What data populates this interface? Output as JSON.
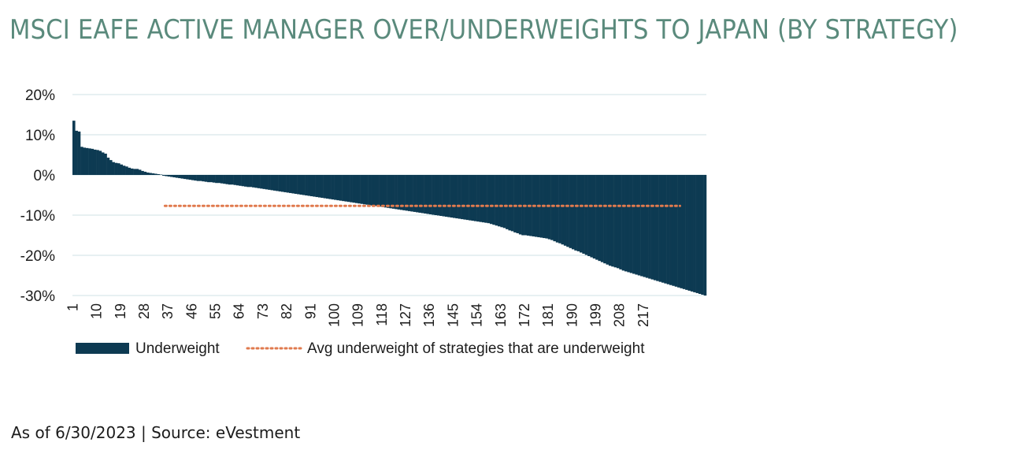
{
  "page": {
    "title": "MSCI EAFE ACTIVE MANAGER OVER/UNDERWEIGHTS TO JAPAN (BY STRATEGY)",
    "footer": "As of 6/30/2023 | Source: eVestment"
  },
  "colors": {
    "bars": "#0d3a52",
    "avg_line": "#e07a4e",
    "grid": "#cfe0e6",
    "title": "#5a8a7c"
  },
  "chart_data": {
    "type": "bar",
    "title": "MSCI EAFE ACTIVE MANAGER OVER/UNDERWEIGHTS TO JAPAN (BY STRATEGY)",
    "xlabel": "",
    "ylabel": "",
    "ylim": [
      -30,
      20
    ],
    "yticks": [
      20,
      10,
      0,
      -10,
      -20,
      -30
    ],
    "ytick_labels": [
      "20%",
      "10%",
      "0%",
      "-10%",
      "-20%",
      "-30%"
    ],
    "xtick_labels": [
      "1",
      "10",
      "19",
      "28",
      "37",
      "46",
      "55",
      "64",
      "73",
      "82",
      "91",
      "100",
      "109",
      "118",
      "127",
      "136",
      "145",
      "154",
      "163",
      "172",
      "181",
      "190",
      "199",
      "208",
      "217"
    ],
    "grid": true,
    "legend": {
      "placement": "bottom",
      "entries": [
        "Underweight",
        "Avg underweight of strategies that are underweight"
      ]
    },
    "series": [
      {
        "name": "Underweight",
        "values": [
          13.5,
          11,
          10.8,
          7,
          6.8,
          6.7,
          6.6,
          6.5,
          6.3,
          6.2,
          6.0,
          5.6,
          5.3,
          4.3,
          3.7,
          3.2,
          3.0,
          2.9,
          2.6,
          2.3,
          2.1,
          1.8,
          1.6,
          1.5,
          1.5,
          1.3,
          1.0,
          0.8,
          0.6,
          0.5,
          0.4,
          0.3,
          0.2,
          0.1,
          -0.2,
          -0.3,
          -0.4,
          -0.5,
          -0.6,
          -0.7,
          -0.8,
          -0.9,
          -1.0,
          -1.1,
          -1.2,
          -1.3,
          -1.4,
          -1.5,
          -1.5,
          -1.6,
          -1.7,
          -1.8,
          -1.8,
          -1.9,
          -2.0,
          -2.0,
          -2.1,
          -2.2,
          -2.3,
          -2.4,
          -2.4,
          -2.5,
          -2.6,
          -2.7,
          -2.8,
          -2.9,
          -3.0,
          -3.0,
          -3.1,
          -3.2,
          -3.3,
          -3.4,
          -3.5,
          -3.6,
          -3.7,
          -3.8,
          -3.9,
          -4.0,
          -4.1,
          -4.2,
          -4.3,
          -4.4,
          -4.5,
          -4.6,
          -4.7,
          -4.8,
          -4.9,
          -5.0,
          -5.1,
          -5.2,
          -5.3,
          -5.4,
          -5.5,
          -5.6,
          -5.7,
          -5.8,
          -5.9,
          -6.0,
          -6.1,
          -6.2,
          -6.3,
          -6.4,
          -6.5,
          -6.6,
          -6.7,
          -6.8,
          -6.9,
          -7.0,
          -7.1,
          -7.2,
          -7.3,
          -7.4,
          -7.5,
          -7.6,
          -7.7,
          -7.8,
          -7.9,
          -8.0,
          -8.1,
          -8.2,
          -8.3,
          -8.4,
          -8.5,
          -8.6,
          -8.7,
          -8.8,
          -8.9,
          -9.0,
          -9.1,
          -9.2,
          -9.3,
          -9.4,
          -9.5,
          -9.6,
          -9.7,
          -9.8,
          -9.9,
          -10.0,
          -10.1,
          -10.2,
          -10.3,
          -10.4,
          -10.5,
          -10.6,
          -10.7,
          -10.8,
          -10.9,
          -11.0,
          -11.1,
          -11.2,
          -11.3,
          -11.4,
          -11.5,
          -11.6,
          -11.7,
          -11.8,
          -11.9,
          -12.0,
          -12.2,
          -12.4,
          -12.6,
          -12.8,
          -13.0,
          -13.2,
          -13.5,
          -13.8,
          -14.0,
          -14.3,
          -14.5,
          -14.8,
          -15.0,
          -15.0,
          -15.1,
          -15.2,
          -15.3,
          -15.4,
          -15.5,
          -15.6,
          -15.7,
          -15.8,
          -16.0,
          -16.2,
          -16.5,
          -16.8,
          -17.0,
          -17.3,
          -17.6,
          -17.9,
          -18.2,
          -18.5,
          -18.8,
          -19.0,
          -19.3,
          -19.6,
          -19.9,
          -20.2,
          -20.5,
          -20.8,
          -21.1,
          -21.4,
          -21.7,
          -22.0,
          -22.3,
          -22.6,
          -22.8,
          -23.0,
          -23.2,
          -23.5,
          -23.8,
          -24.0,
          -24.2,
          -24.4,
          -24.6,
          -24.8,
          -25.0,
          -25.2,
          -25.4,
          -25.6,
          -25.8,
          -26.0,
          -26.2,
          -26.4,
          -26.6,
          -26.8,
          -27.0,
          -27.2,
          -27.4,
          -27.6,
          -27.8,
          -28.0,
          -28.2,
          -28.4,
          -28.6,
          -28.8,
          -29.0,
          -29.2,
          -29.4,
          -29.6,
          -29.8,
          -30.0
        ]
      },
      {
        "name": "Avg underweight of strategies that are underweight",
        "type": "line",
        "value": -7.7,
        "x_range": [
          36,
          230
        ]
      }
    ]
  }
}
